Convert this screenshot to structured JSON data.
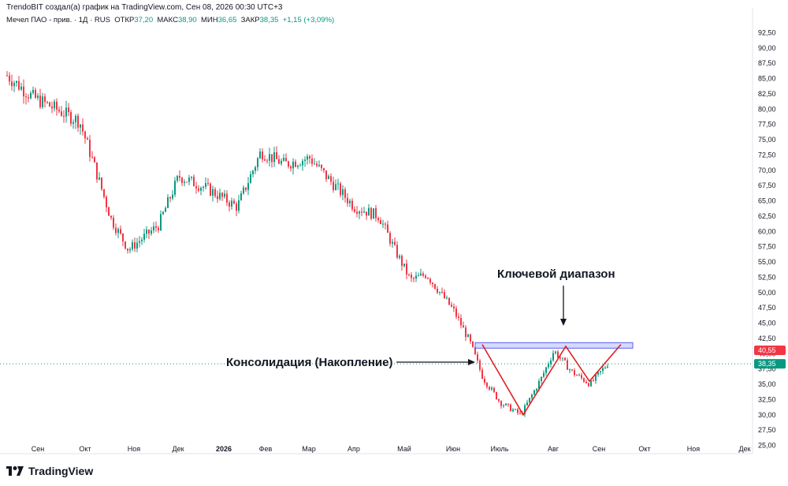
{
  "header": {
    "attribution": "TrendoBIT создал(а) график на TradingView.com, Сен 08, 2026 00:30 UTC+3"
  },
  "legend": {
    "symbol": "Мечел ПАО - прив. · 1Д · RUS",
    "open_label": "ОТКР",
    "open": "37,20",
    "high_label": "МАКС",
    "high": "38,90",
    "low_label": "МИН",
    "low": "36,65",
    "close_label": "ЗАКР",
    "close": "38,35",
    "change": "+1,15 (+3,09%)"
  },
  "brand": {
    "name": "TradingView"
  },
  "colors": {
    "up": "#089981",
    "down": "#f23645",
    "zone": "#c5c9ff",
    "zone_border": "#5b5ff0",
    "pattern": "#e02020",
    "price_tag": "#089981",
    "zone_tag": "#f23645"
  },
  "chart_data": {
    "type": "candlestick",
    "y_axis": {
      "ticks": [
        25,
        27.5,
        30,
        32.5,
        35,
        37.5,
        40,
        42.5,
        45,
        47.5,
        50,
        52.5,
        55,
        57.5,
        60,
        62.5,
        65,
        67.5,
        70,
        72.5,
        75,
        77.5,
        80,
        82.5,
        85,
        87.5,
        90,
        92.5
      ],
      "tick_labels": [
        "25,00",
        "27,50",
        "30,00",
        "32,50",
        "35,00",
        "37,50",
        "40,00",
        "42,50",
        "45,00",
        "47,50",
        "50,00",
        "52,50",
        "55,00",
        "57,50",
        "60,00",
        "62,50",
        "65,00",
        "67,50",
        "70,00",
        "72,50",
        "75,00",
        "77,50",
        "80,00",
        "82,50",
        "85,00",
        "87,50",
        "90,00",
        "92,50"
      ],
      "range": [
        23.5,
        93.5
      ]
    },
    "x_axis": {
      "labels": [
        "Сен",
        "Окт",
        "Ноя",
        "Дек",
        "2026",
        "Фев",
        "Мар",
        "Апр",
        "Май",
        "Июн",
        "Июль",
        "Авг",
        "Сен",
        "Окт",
        "Ноя",
        "Дек"
      ],
      "bold_index": 4
    },
    "price_path": [
      {
        "d": "Сен 2025",
        "p": 85.5
      },
      {
        "d": "мид-Сен",
        "p": 82
      },
      {
        "d": "Окт",
        "p": 78
      },
      {
        "d": "мид-Окт",
        "p": 71
      },
      {
        "d": "кон-Окт",
        "p": 62
      },
      {
        "d": "мид-Ноя",
        "p": 57
      },
      {
        "d": "кон-Ноя",
        "p": 61
      },
      {
        "d": "мид-Дек",
        "p": 69
      },
      {
        "d": "2026",
        "p": 67
      },
      {
        "d": "мид-Янв",
        "p": 64
      },
      {
        "d": "Фев",
        "p": 73
      },
      {
        "d": "мид-Фев",
        "p": 71
      },
      {
        "d": "Мар",
        "p": 72
      },
      {
        "d": "мид-Мар",
        "p": 68
      },
      {
        "d": "Апр",
        "p": 64
      },
      {
        "d": "мид-Апр",
        "p": 62.5
      },
      {
        "d": "Май",
        "p": 57
      },
      {
        "d": "мид-Май",
        "p": 52
      },
      {
        "d": "кон-Май",
        "p": 53
      },
      {
        "d": "Июн",
        "p": 47
      },
      {
        "d": "мид-Июн",
        "p": 42
      },
      {
        "d": "кон-Июн",
        "p": 36
      },
      {
        "d": "Июль",
        "p": 32
      },
      {
        "d": "мид-Июль",
        "p": 30
      },
      {
        "d": "кон-Июль",
        "p": 36
      },
      {
        "d": "Авг",
        "p": 40.5
      },
      {
        "d": "мид-Авг",
        "p": 37
      },
      {
        "d": "кон-Авг",
        "p": 35
      },
      {
        "d": "Сен",
        "p": 38.35
      }
    ],
    "zone": {
      "low": 40.9,
      "high": 41.8,
      "label": "Ключевой диапазон"
    },
    "consolidation_label": "Консолидация (Накопление)",
    "pattern_points": [
      {
        "d": "кон-Июн",
        "p": 41.5
      },
      {
        "d": "мид-Июль",
        "p": 30
      },
      {
        "d": "Авг",
        "p": 41.2
      },
      {
        "d": "кон-Авг",
        "p": 35.5
      },
      {
        "d": "Сен",
        "p": 41.5
      }
    ],
    "last_price": {
      "value": "38,35",
      "v": 38.35
    },
    "zone_price": {
      "value": "40,55",
      "v": 40.55
    }
  }
}
